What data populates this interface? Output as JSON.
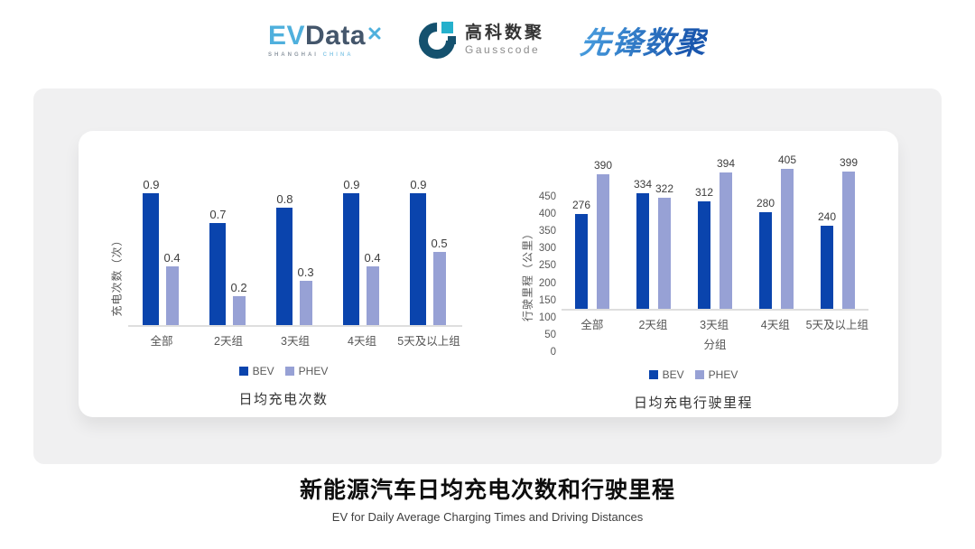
{
  "header": {
    "evdata": {
      "ev": "EV",
      "data": "Data",
      "sub_left": "SHANGHAI",
      "sub_right": "CHINA"
    },
    "gausscode": {
      "cn": "高科数聚",
      "en": "Gausscode"
    },
    "xianfeng": {
      "text": "先锋数聚"
    }
  },
  "chart_data": [
    {
      "type": "bar",
      "title": "日均充电次数",
      "ylabel": "充电次数（次）",
      "xlabel": "",
      "categories": [
        "全部",
        "2天组",
        "3天组",
        "4天组",
        "5天及以上组"
      ],
      "series": [
        {
          "name": "BEV",
          "color": "#0a44ad",
          "values": [
            0.9,
            0.7,
            0.8,
            0.9,
            0.9
          ]
        },
        {
          "name": "PHEV",
          "color": "#97a1d5",
          "values": [
            0.4,
            0.2,
            0.3,
            0.4,
            0.5
          ]
        }
      ],
      "ylim": [
        0,
        1.0
      ],
      "yticks": [],
      "grid": false,
      "legend_position": "bottom",
      "value_labels": true
    },
    {
      "type": "bar",
      "title": "日均充电行驶里程",
      "ylabel": "行驶里程（公里）",
      "xlabel": "分组",
      "categories": [
        "全部",
        "2天组",
        "3天组",
        "4天组",
        "5天及以上组"
      ],
      "series": [
        {
          "name": "BEV",
          "color": "#0a44ad",
          "values": [
            276,
            334,
            312,
            280,
            240
          ]
        },
        {
          "name": "PHEV",
          "color": "#97a1d5",
          "values": [
            390,
            322,
            394,
            405,
            399
          ]
        }
      ],
      "ylim": [
        0,
        450
      ],
      "yticks": [
        0,
        50,
        100,
        150,
        200,
        250,
        300,
        350,
        400,
        450
      ],
      "grid": false,
      "legend_position": "bottom",
      "value_labels": true
    }
  ],
  "footer": {
    "title_cn": "新能源汽车日均充电次数和行驶里程",
    "title_en": "EV for Daily Average Charging Times and Driving Distances"
  },
  "colors": {
    "bev": "#0a44ad",
    "phev": "#97a1d5",
    "panel_bg": "#f0f0f1",
    "baseline": "#dedede",
    "evdata_blue": "#4fb0dd",
    "evdata_dark": "#44566b",
    "gausscode_navy": "#14516e",
    "gausscode_cyan": "#25b0cc",
    "xianfeng_blue_light": "#4aa0e0",
    "xianfeng_blue_dark": "#1a57ae"
  }
}
